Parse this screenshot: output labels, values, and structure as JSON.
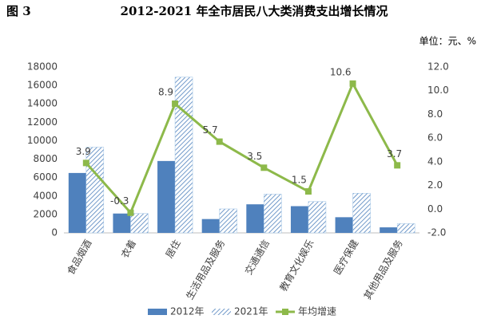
{
  "chart_data": {
    "type": "bar_line",
    "figure_label": "图 3",
    "title": "2012-2021 年全市居民八大类消费支出增长情况",
    "unit": "单位：元、%",
    "categories": [
      "食品烟酒",
      "衣着",
      "居住",
      "生活用品及服务",
      "交通通信",
      "教育文化娱乐",
      "医疗保健",
      "其他用品及服务"
    ],
    "series": [
      {
        "name": "2012年",
        "type": "bar",
        "color": "#4f81bd",
        "values": [
          6500,
          2100,
          7800,
          1500,
          3100,
          2900,
          1700,
          600
        ]
      },
      {
        "name": "2021年",
        "type": "bar",
        "color": "#4f81bd",
        "hatch": true,
        "values": [
          9300,
          2100,
          16900,
          2600,
          4200,
          3400,
          4300,
          1000
        ]
      },
      {
        "name": "年均增速",
        "type": "line",
        "axis": "y2",
        "color": "#8db94a",
        "values": [
          3.9,
          -0.3,
          8.9,
          5.7,
          3.5,
          1.5,
          10.6,
          3.7
        ]
      }
    ],
    "ylim": [
      0,
      18000
    ],
    "yticks": [
      0,
      2000,
      4000,
      6000,
      8000,
      10000,
      12000,
      14000,
      16000,
      18000
    ],
    "y2lim": [
      -2,
      12
    ],
    "y2ticks": [
      {
        "value": -2,
        "label": "-2.0"
      },
      {
        "value": 0,
        "label": "0.0"
      },
      {
        "value": 2,
        "label": "2.0"
      },
      {
        "value": 4,
        "label": "4.0"
      },
      {
        "value": 6,
        "label": "6.0"
      },
      {
        "value": 8,
        "label": "8.0"
      },
      {
        "value": 10,
        "label": "10.0"
      },
      {
        "value": 12,
        "label": "12.0"
      }
    ],
    "grid": false,
    "legend": "bottom"
  }
}
